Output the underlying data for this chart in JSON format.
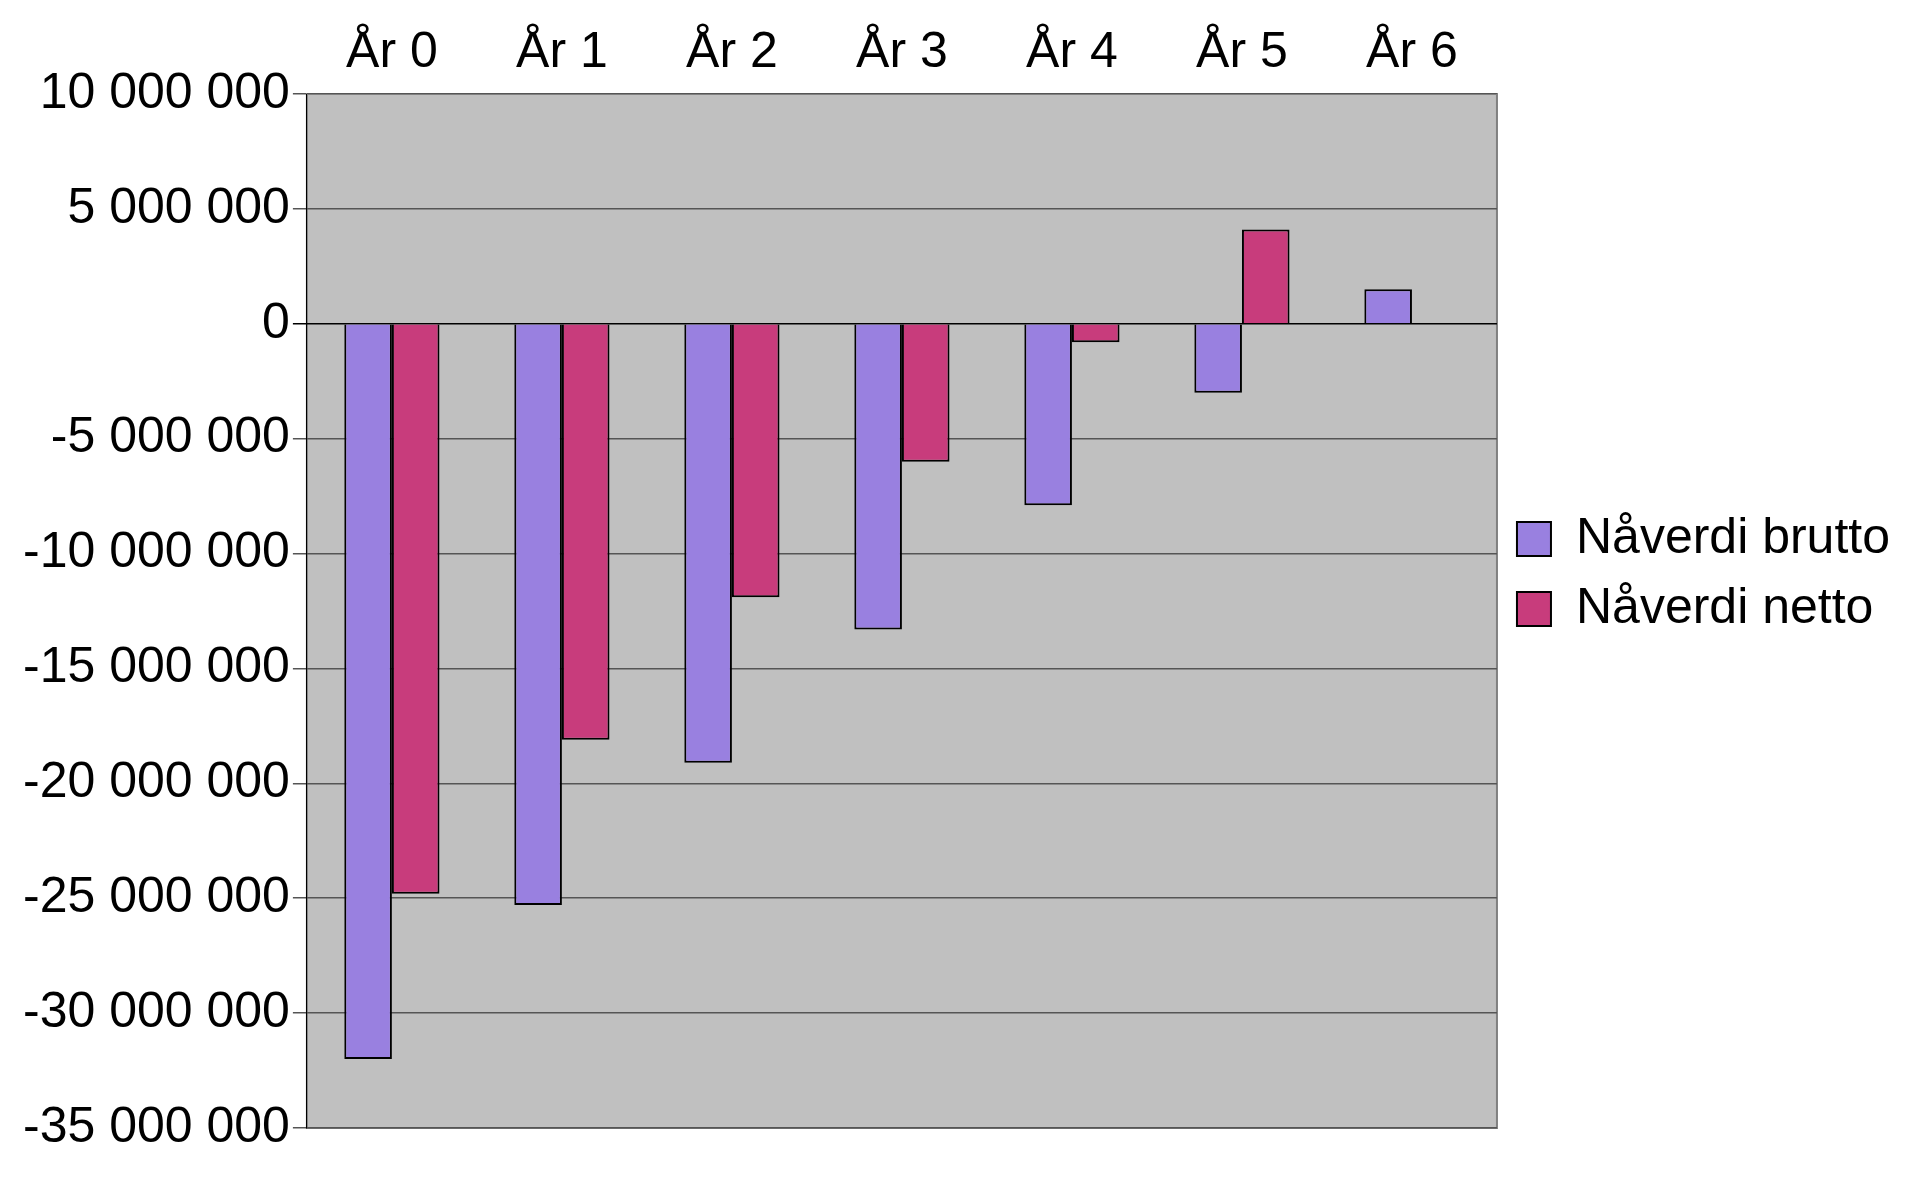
{
  "chart_data": {
    "type": "bar",
    "categories": [
      "År 0",
      "År 1",
      "År 2",
      "År 3",
      "År 4",
      "År 5",
      "År 6"
    ],
    "series": [
      {
        "name": "Nåverdi brutto",
        "color": "#9980e0",
        "values": [
          -32000000,
          -25300000,
          -19100000,
          -13300000,
          -7900000,
          -3000000,
          1500000
        ]
      },
      {
        "name": "Nåverdi netto",
        "color": "#c83c7c",
        "values": [
          -24800000,
          -18100000,
          -11900000,
          -6000000,
          -800000,
          4100000,
          null
        ]
      }
    ],
    "ylim": [
      -35000000,
      10000000
    ],
    "yticks": [
      {
        "value": -35000000,
        "label": "-35 000 000"
      },
      {
        "value": -30000000,
        "label": "-30 000 000"
      },
      {
        "value": -25000000,
        "label": "-25 000 000"
      },
      {
        "value": -20000000,
        "label": "-20 000 000"
      },
      {
        "value": -15000000,
        "label": "-15 000 000"
      },
      {
        "value": -10000000,
        "label": "-10 000 000"
      },
      {
        "value": -5000000,
        "label": "-5 000 000"
      },
      {
        "value": 0,
        "label": "0"
      },
      {
        "value": 5000000,
        "label": "5 000 000"
      },
      {
        "value": 10000000,
        "label": "10 000 000"
      }
    ],
    "grid": "y",
    "legend": "right"
  }
}
